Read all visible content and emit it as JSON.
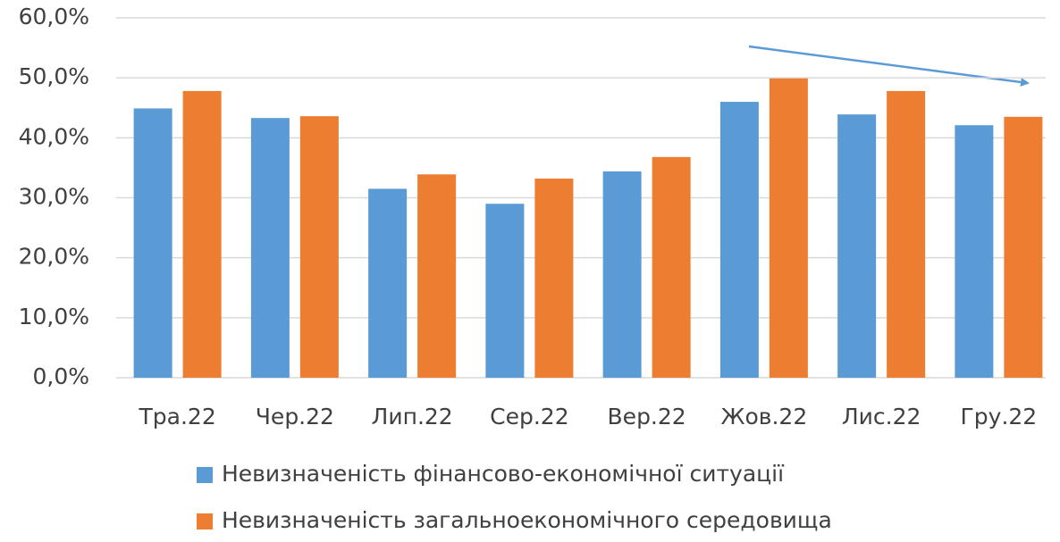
{
  "chart_data": {
    "type": "bar",
    "categories": [
      "Тра.22",
      "Чер.22",
      "Лип.22",
      "Сер.22",
      "Вер.22",
      "Жов.22",
      "Лис.22",
      "Гру.22"
    ],
    "series": [
      {
        "name": "Невизначеність фінансово-економічної ситуації",
        "color": "#5b9bd5",
        "values": [
          44.9,
          43.3,
          31.5,
          29.0,
          34.4,
          46.0,
          43.9,
          42.1
        ]
      },
      {
        "name": "Невизначеність загальноекономічного середовища",
        "color": "#ed7d31",
        "values": [
          47.8,
          43.6,
          33.9,
          33.2,
          36.8,
          49.9,
          47.8,
          43.5
        ]
      }
    ],
    "ylim": [
      0,
      60
    ],
    "yticks": [
      {
        "value": 0,
        "label": "0,0%"
      },
      {
        "value": 10,
        "label": "10,0%"
      },
      {
        "value": 20,
        "label": "20,0%"
      },
      {
        "value": 30,
        "label": "30,0%"
      },
      {
        "value": 40,
        "label": "40,0%"
      },
      {
        "value": 50,
        "label": "50,0%"
      },
      {
        "value": 60,
        "label": "60,0%"
      }
    ],
    "grid": true,
    "legend": "bottom"
  }
}
